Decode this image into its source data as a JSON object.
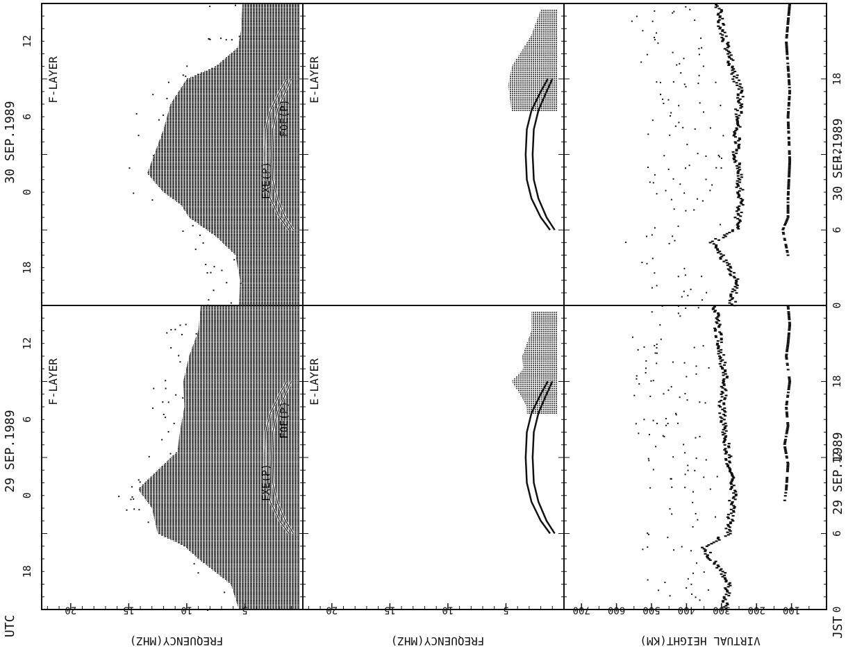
{
  "figure": {
    "utc_label": "UTC",
    "jst_label": "JST"
  },
  "day_labels": {
    "day1_top": "29 SEP.1989",
    "day2_top": "30 SEP.1989",
    "day1_bottom": "29 SEP.1989",
    "day2_bottom": "30 SEP.1989"
  },
  "axis_labels": {
    "f_frequency": "FREQUENCY(MHZ)",
    "e_frequency": "FREQUENCY(MHZ)",
    "virtual_height": "VIRTUAL HEIGHT(KM)"
  },
  "chart_data": [
    {
      "type": "scatter",
      "title": "F-LAYER",
      "panel": "F-LAYER, 29 SEP.1989",
      "x_axis": {
        "label": "UTC",
        "ticks": [
          18,
          0,
          6,
          12
        ],
        "range_hours_jst": [
          0,
          24
        ]
      },
      "y_axis": {
        "label": "FREQUENCY(MHZ)",
        "ticks": [
          5,
          10,
          15,
          20
        ],
        "range": [
          0,
          22.5
        ]
      },
      "curve_labels": [
        "FXE(P)",
        "FOE(P)"
      ],
      "envelope_fmax": [
        [
          0.0,
          5.5
        ],
        [
          2.0,
          6.2
        ],
        [
          4.0,
          9.0
        ],
        [
          5.0,
          10.2
        ],
        [
          6.0,
          12.5
        ],
        [
          8.0,
          13.0
        ],
        [
          9.5,
          14.2
        ],
        [
          11.0,
          12.5
        ],
        [
          12.5,
          10.8
        ],
        [
          14.0,
          10.6
        ],
        [
          16.0,
          10.2
        ],
        [
          18.0,
          10.3
        ],
        [
          20.0,
          9.8
        ],
        [
          22.0,
          9.0
        ],
        [
          24.0,
          8.8
        ]
      ],
      "curve_foe": [
        [
          6.0,
          0.8
        ],
        [
          7.0,
          1.5
        ],
        [
          8.5,
          2.2
        ],
        [
          10.0,
          2.6
        ],
        [
          12.0,
          2.7
        ],
        [
          14.0,
          2.6
        ],
        [
          15.5,
          2.2
        ],
        [
          17.0,
          1.5
        ],
        [
          18.0,
          1.0
        ]
      ],
      "curve_fxe": [
        [
          6.0,
          1.2
        ],
        [
          7.0,
          2.0
        ],
        [
          8.5,
          2.8
        ],
        [
          10.0,
          3.2
        ],
        [
          12.0,
          3.3
        ],
        [
          14.0,
          3.2
        ],
        [
          15.5,
          2.8
        ],
        [
          17.0,
          2.0
        ],
        [
          18.0,
          1.4
        ]
      ]
    },
    {
      "type": "scatter",
      "title": "F-LAYER",
      "panel": "F-LAYER, 30 SEP.1989",
      "x_axis": {
        "label": "UTC",
        "ticks": [
          18,
          0,
          6,
          12
        ],
        "range_hours_jst": [
          0,
          24
        ]
      },
      "y_axis": {
        "label": "FREQUENCY(MHZ)",
        "ticks": [
          5,
          10,
          15,
          20
        ],
        "range": [
          0,
          22.5
        ]
      },
      "curve_labels": [
        "FXE(P)",
        "FOE(P)"
      ],
      "envelope_fmax": [
        [
          0.0,
          5.5
        ],
        [
          2.0,
          5.4
        ],
        [
          4.0,
          5.8
        ],
        [
          5.5,
          7.5
        ],
        [
          7.0,
          9.8
        ],
        [
          8.0,
          10.5
        ],
        [
          9.0,
          12.0
        ],
        [
          10.5,
          13.4
        ],
        [
          12.0,
          12.8
        ],
        [
          14.0,
          12.0
        ],
        [
          16.0,
          11.4
        ],
        [
          18.0,
          10.0
        ],
        [
          19.0,
          7.5
        ],
        [
          20.5,
          5.6
        ],
        [
          22.0,
          5.3
        ],
        [
          24.0,
          5.2
        ]
      ],
      "curve_foe": [
        [
          6.0,
          0.8
        ],
        [
          7.0,
          1.5
        ],
        [
          8.5,
          2.2
        ],
        [
          10.0,
          2.6
        ],
        [
          12.0,
          2.7
        ],
        [
          14.0,
          2.6
        ],
        [
          15.5,
          2.2
        ],
        [
          17.0,
          1.5
        ],
        [
          18.0,
          1.0
        ]
      ],
      "curve_fxe": [
        [
          6.0,
          1.2
        ],
        [
          7.0,
          2.0
        ],
        [
          8.5,
          2.8
        ],
        [
          10.0,
          3.2
        ],
        [
          12.0,
          3.3
        ],
        [
          14.0,
          3.2
        ],
        [
          15.5,
          2.8
        ],
        [
          17.0,
          2.0
        ],
        [
          18.0,
          1.4
        ]
      ]
    },
    {
      "type": "scatter",
      "title": "E-LAYER",
      "panel": "E-LAYER, 29 SEP.1989",
      "x_axis": {
        "label": "UTC",
        "ticks": [
          18,
          0,
          6,
          12
        ],
        "range_hours_jst": [
          0,
          24
        ]
      },
      "y_axis": {
        "label": "FREQUENCY(MHZ)",
        "ticks": [
          5,
          10,
          15,
          20
        ],
        "range": [
          0,
          22.5
        ]
      },
      "curve_foe": [
        [
          6.0,
          0.8
        ],
        [
          7.0,
          1.5
        ],
        [
          8.5,
          2.2
        ],
        [
          10.0,
          2.6
        ],
        [
          12.0,
          2.7
        ],
        [
          14.0,
          2.6
        ],
        [
          15.5,
          2.2
        ],
        [
          17.0,
          1.5
        ],
        [
          18.0,
          1.0
        ]
      ],
      "curve_fxe": [
        [
          6.0,
          1.2
        ],
        [
          7.0,
          2.0
        ],
        [
          8.5,
          2.8
        ],
        [
          10.0,
          3.2
        ],
        [
          12.0,
          3.3
        ],
        [
          14.0,
          3.2
        ],
        [
          15.5,
          2.8
        ],
        [
          17.0,
          2.0
        ],
        [
          18.0,
          1.4
        ]
      ],
      "sporadic_e_max": [
        [
          8.0,
          3.0
        ],
        [
          16.0,
          3.2
        ],
        [
          17.0,
          3.8
        ],
        [
          18.0,
          4.5
        ],
        [
          19.0,
          3.5
        ],
        [
          20.0,
          3.6
        ],
        [
          22.0,
          2.8
        ]
      ]
    },
    {
      "type": "scatter",
      "title": "E-LAYER",
      "panel": "E-LAYER, 30 SEP.1989",
      "x_axis": {
        "label": "UTC",
        "ticks": [
          18,
          0,
          6,
          12
        ],
        "range_hours_jst": [
          0,
          24
        ]
      },
      "y_axis": {
        "label": "FREQUENCY(MHZ)",
        "ticks": [
          5,
          10,
          15,
          20
        ],
        "range": [
          0,
          22.5
        ]
      },
      "curve_foe": [
        [
          6.0,
          0.8
        ],
        [
          7.0,
          1.5
        ],
        [
          8.5,
          2.2
        ],
        [
          10.0,
          2.6
        ],
        [
          12.0,
          2.7
        ],
        [
          14.0,
          2.6
        ],
        [
          15.5,
          2.2
        ],
        [
          17.0,
          1.5
        ],
        [
          18.0,
          1.0
        ]
      ],
      "curve_fxe": [
        [
          6.0,
          1.2
        ],
        [
          7.0,
          2.0
        ],
        [
          8.5,
          2.8
        ],
        [
          10.0,
          3.2
        ],
        [
          12.0,
          3.3
        ],
        [
          14.0,
          3.2
        ],
        [
          15.5,
          2.8
        ],
        [
          17.0,
          2.0
        ],
        [
          18.0,
          1.4
        ]
      ],
      "sporadic_e_max": [
        [
          8.0,
          3.5
        ],
        [
          17.5,
          4.8
        ],
        [
          19.0,
          4.5
        ],
        [
          20.0,
          3.8
        ],
        [
          21.5,
          2.8
        ],
        [
          23.5,
          2.0
        ]
      ]
    },
    {
      "type": "scatter",
      "title": "",
      "panel": "VIRTUAL HEIGHT, 29 SEP.1989",
      "x_axis": {
        "label": "JST",
        "ticks": [
          0,
          6,
          12,
          18
        ],
        "range": [
          0,
          24
        ]
      },
      "y_axis": {
        "label": "VIRTUAL HEIGHT(KM)",
        "ticks": [
          100,
          200,
          300,
          400,
          500,
          600,
          700
        ],
        "range": [
          0,
          750
        ]
      },
      "f_trace_km": [
        [
          0,
          290
        ],
        [
          2,
          280
        ],
        [
          3,
          300
        ],
        [
          4,
          330
        ],
        [
          5,
          350
        ],
        [
          6,
          280
        ],
        [
          8,
          270
        ],
        [
          10,
          265
        ],
        [
          12,
          280
        ],
        [
          14,
          290
        ],
        [
          16,
          300
        ],
        [
          18,
          290
        ],
        [
          20,
          300
        ],
        [
          22,
          310
        ],
        [
          24,
          320
        ]
      ],
      "e_trace_km": [
        [
          8.5,
          120
        ],
        [
          9.5,
          115
        ],
        [
          11.5,
          110
        ],
        [
          13,
          120
        ],
        [
          14.5,
          110
        ],
        [
          16,
          115
        ],
        [
          17,
          110
        ],
        [
          18,
          105
        ],
        [
          19,
          110
        ],
        [
          20,
          115
        ],
        [
          21,
          110
        ],
        [
          22.5,
          105
        ],
        [
          24,
          110
        ]
      ]
    },
    {
      "type": "scatter",
      "title": "",
      "panel": "VIRTUAL HEIGHT, 30 SEP.1989",
      "x_axis": {
        "label": "JST",
        "ticks": [
          0,
          6,
          12,
          18
        ],
        "range": [
          0,
          24
        ]
      },
      "y_axis": {
        "label": "VIRTUAL HEIGHT(KM)",
        "ticks": [
          100,
          200,
          300,
          400,
          500,
          600,
          700
        ],
        "range": [
          0,
          750
        ]
      },
      "f_trace_km": [
        [
          0,
          270
        ],
        [
          2,
          260
        ],
        [
          3,
          280
        ],
        [
          4,
          300
        ],
        [
          5,
          330
        ],
        [
          6,
          260
        ],
        [
          8,
          245
        ],
        [
          10,
          250
        ],
        [
          12,
          260
        ],
        [
          14,
          255
        ],
        [
          16,
          250
        ],
        [
          17,
          245
        ],
        [
          18,
          260
        ],
        [
          20,
          280
        ],
        [
          22,
          300
        ],
        [
          24,
          310
        ]
      ],
      "e_trace_km": [
        [
          4,
          110
        ],
        [
          6,
          125
        ],
        [
          7,
          110
        ],
        [
          8.5,
          110
        ],
        [
          11.5,
          105
        ],
        [
          15,
          110
        ],
        [
          17,
          105
        ],
        [
          19,
          110
        ],
        [
          21,
          115
        ],
        [
          22.5,
          110
        ],
        [
          24,
          105
        ]
      ]
    }
  ]
}
